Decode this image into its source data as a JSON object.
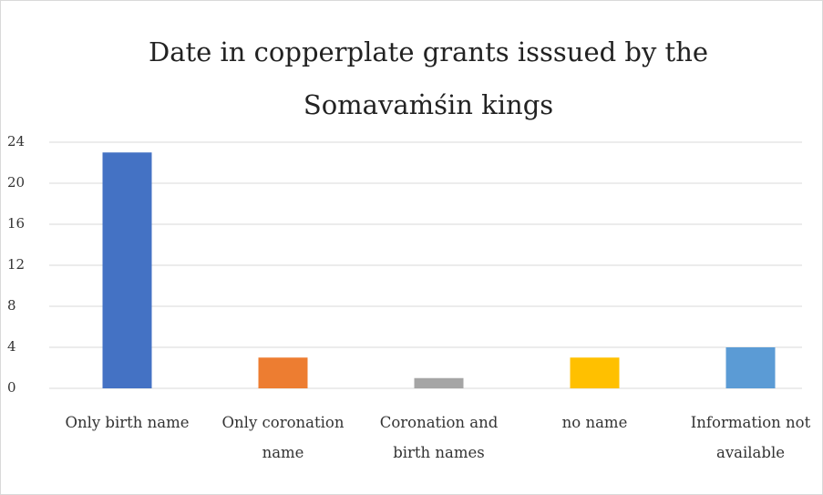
{
  "chart_data": {
    "type": "bar",
    "title": "Date in copperplate grants isssued by the Somavaṁśin kings",
    "categories": [
      "Only birth name",
      "Only coronation name",
      "Coronation and birth names",
      "no name",
      "Information not available"
    ],
    "values": [
      23,
      3,
      1,
      3,
      4
    ],
    "colors": [
      "#4472c4",
      "#ed7d31",
      "#a5a5a5",
      "#ffc000",
      "#5b9bd5"
    ],
    "ylim": [
      0,
      24
    ],
    "yticks": [
      0,
      4,
      8,
      12,
      16,
      20,
      24
    ],
    "grid": true
  }
}
